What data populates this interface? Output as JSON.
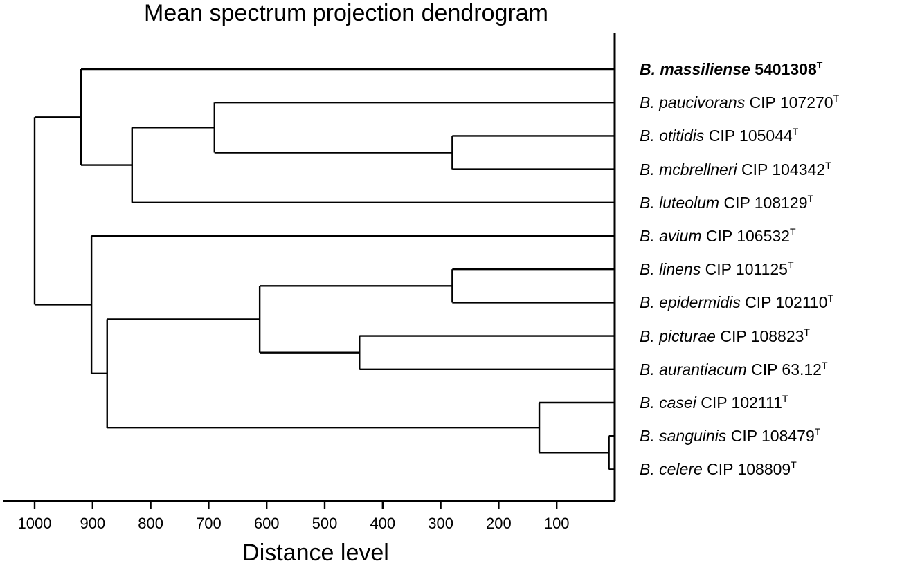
{
  "title": "Mean spectrum projection dendrogram",
  "axis": {
    "xlabel": "Distance level",
    "ticks": [
      1000,
      900,
      800,
      700,
      600,
      500,
      400,
      300,
      200,
      100
    ]
  },
  "leaves": [
    {
      "genus": "B.",
      "species": "massiliense",
      "strain": "5401308",
      "sup": "T",
      "bold": true
    },
    {
      "genus": "B.",
      "species": "paucivorans",
      "strain": "CIP 107270",
      "sup": "T"
    },
    {
      "genus": "B.",
      "species": "otitidis",
      "strain": "CIP 105044",
      "sup": "T"
    },
    {
      "genus": "B.",
      "species": "mcbrellneri",
      "strain": "CIP 104342",
      "sup": "T"
    },
    {
      "genus": "B.",
      "species": "luteolum",
      "strain": "CIP 108129",
      "sup": "T"
    },
    {
      "genus": "B.",
      "species": "avium",
      "strain": "CIP 106532",
      "sup": "T"
    },
    {
      "genus": "B.",
      "species": "linens",
      "strain": "CIP 101125",
      "sup": "T"
    },
    {
      "genus": "B.",
      "species": "epidermidis",
      "strain": "CIP 102110",
      "sup": "T"
    },
    {
      "genus": "B.",
      "species": "picturae",
      "strain": "CIP 108823",
      "sup": "T"
    },
    {
      "genus": "B.",
      "species": "aurantiacum",
      "strain": "CIP 63.12",
      "sup": "T"
    },
    {
      "genus": "B.",
      "species": "casei",
      "strain": "CIP 102111",
      "sup": "T"
    },
    {
      "genus": "B.",
      "species": "sanguinis",
      "strain": "CIP 108479",
      "sup": "T"
    },
    {
      "genus": "B.",
      "species": "celere",
      "strain": "CIP 108809",
      "sup": "T"
    }
  ],
  "merges": [
    {
      "id": "n1",
      "children": [
        11,
        12
      ],
      "distance": 10
    },
    {
      "id": "n2",
      "children": [
        10,
        "n1"
      ],
      "distance": 130
    },
    {
      "id": "n3",
      "children": [
        2,
        3
      ],
      "distance": 280
    },
    {
      "id": "n4",
      "children": [
        6,
        7
      ],
      "distance": 280
    },
    {
      "id": "n5",
      "children": [
        8,
        9
      ],
      "distance": 440
    },
    {
      "id": "n6",
      "children": [
        "n4",
        "n5"
      ],
      "distance": 612
    },
    {
      "id": "n7",
      "children": [
        1,
        "n3"
      ],
      "distance": 690
    },
    {
      "id": "n8",
      "children": [
        "n7",
        4
      ],
      "distance": 832
    },
    {
      "id": "n9",
      "children": [
        "n6",
        "n2"
      ],
      "distance": 875
    },
    {
      "id": "n10",
      "children": [
        5,
        "n9"
      ],
      "distance": 902
    },
    {
      "id": "n11",
      "children": [
        0,
        "n8"
      ],
      "distance": 920
    },
    {
      "id": "n12",
      "children": [
        "n11",
        "n10"
      ],
      "distance": 1000
    }
  ]
}
